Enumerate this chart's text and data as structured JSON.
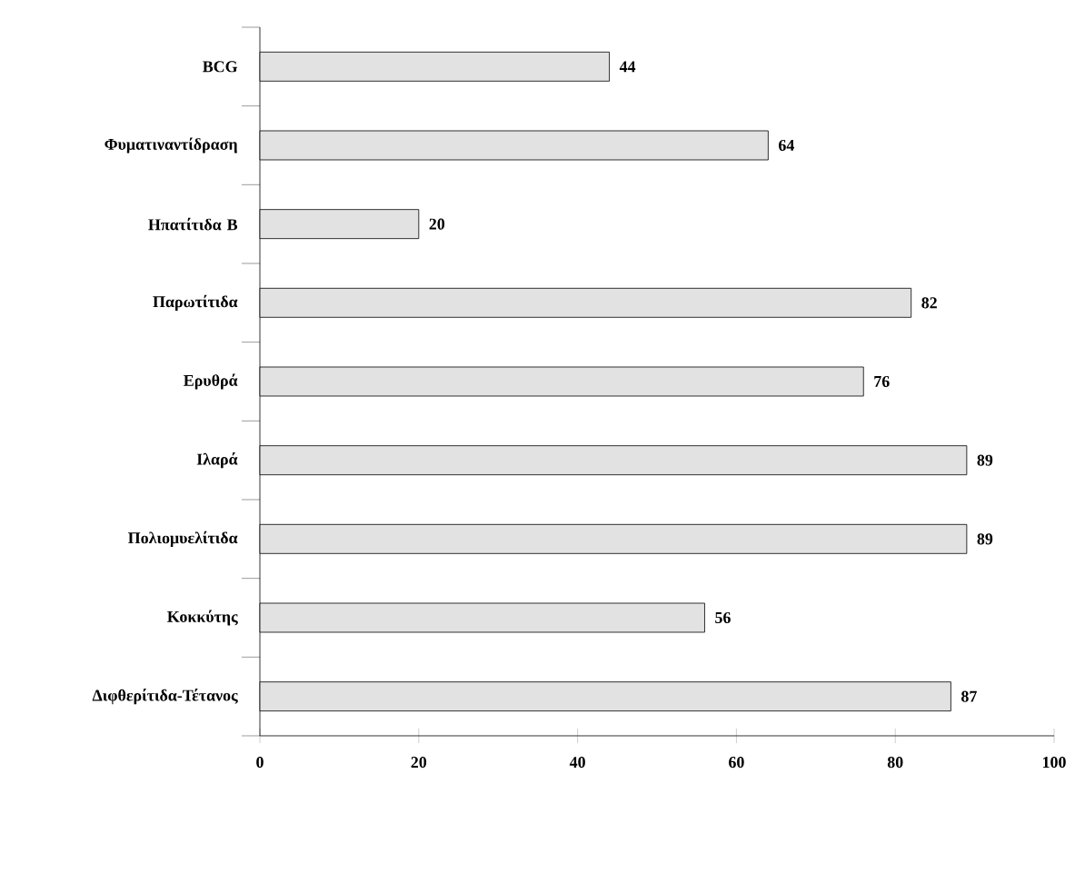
{
  "chart_data": {
    "type": "bar",
    "orientation": "horizontal",
    "categories": [
      "BCG",
      "Φυματιναντίδραση",
      "Ηπατίτιδα Β",
      "Παρωτίτιδα",
      "Ερυθρά",
      "Ιλαρά",
      "Πολιομυελίτιδα",
      "Κοκκύτης",
      "Διφθερίτιδα-Τέτανος"
    ],
    "values": [
      44,
      64,
      20,
      82,
      76,
      89,
      89,
      56,
      87
    ],
    "color": "#e2e2e2",
    "xlim": [
      0,
      100
    ],
    "xticks": [
      0,
      20,
      40,
      60,
      80,
      100
    ],
    "data_labels": true,
    "grid": false
  }
}
